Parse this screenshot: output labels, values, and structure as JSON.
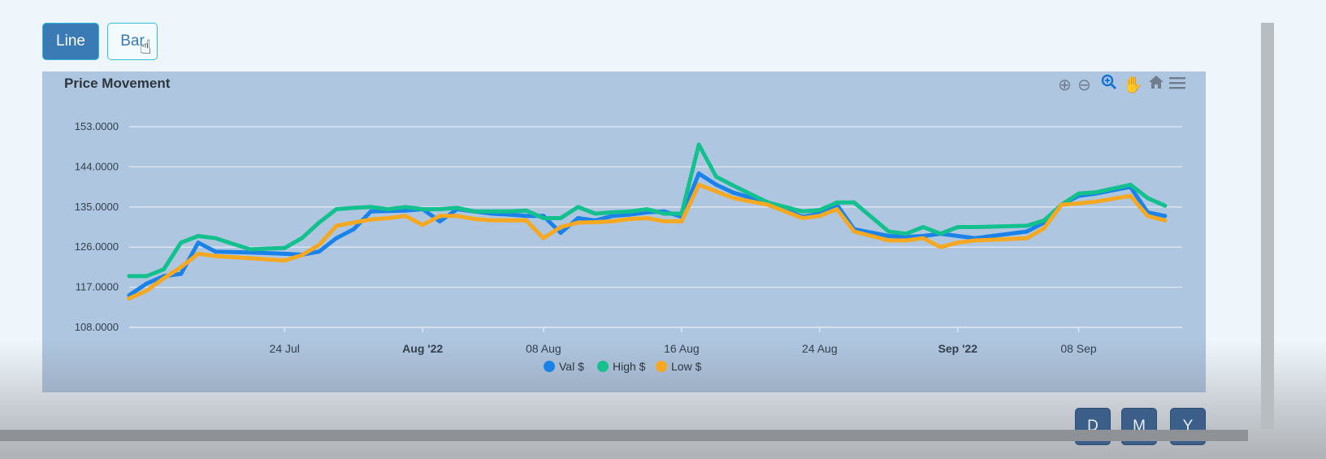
{
  "toolbar": {
    "line_label": "Line",
    "bar_label": "Bar"
  },
  "periods": {
    "d": "D",
    "m": "M",
    "y": "Y"
  },
  "chart_icons": [
    "zoom-in-icon",
    "zoom-out-icon",
    "search-icon",
    "pan-hand-icon",
    "home-icon",
    "menu-icon"
  ],
  "colors": {
    "val": "#1a82e8",
    "high": "#14c08e",
    "low": "#f5a822",
    "panel": "#afc6e0",
    "button_active": "#3a7ab5"
  },
  "chart_data": {
    "type": "line",
    "title": "Price Movement",
    "xlabel": "",
    "ylabel": "",
    "x_range": [
      "2022-07-15",
      "2022-09-14"
    ],
    "ylim": [
      108,
      153
    ],
    "y_ticks": [
      "108.0000",
      "117.0000",
      "126.0000",
      "135.0000",
      "144.0000",
      "153.0000"
    ],
    "x_ticks": [
      {
        "date": "2022-07-24",
        "label": "24 Jul",
        "bold": false
      },
      {
        "date": "2022-08-01",
        "label": "Aug '22",
        "bold": true
      },
      {
        "date": "2022-08-08",
        "label": "08 Aug",
        "bold": false
      },
      {
        "date": "2022-08-16",
        "label": "16 Aug",
        "bold": false
      },
      {
        "date": "2022-08-24",
        "label": "24 Aug",
        "bold": false
      },
      {
        "date": "2022-09-01",
        "label": "Sep '22",
        "bold": true
      },
      {
        "date": "2022-09-08",
        "label": "08 Sep",
        "bold": false
      }
    ],
    "legend_position": "bottom",
    "grid": true,
    "series": [
      {
        "name": "Val $",
        "color": "#1a82e8",
        "points": [
          [
            "2022-07-15",
            115.2
          ],
          [
            "2022-07-16",
            117.8
          ],
          [
            "2022-07-17",
            119.5
          ],
          [
            "2022-07-18",
            120.0
          ],
          [
            "2022-07-19",
            127.0
          ],
          [
            "2022-07-20",
            125.0
          ],
          [
            "2022-07-22",
            124.8
          ],
          [
            "2022-07-24",
            124.5
          ],
          [
            "2022-07-25",
            124.3
          ],
          [
            "2022-07-26",
            125.0
          ],
          [
            "2022-07-27",
            128.0
          ],
          [
            "2022-07-28",
            130.0
          ],
          [
            "2022-07-29",
            134.0
          ],
          [
            "2022-07-30",
            134.1
          ],
          [
            "2022-07-31",
            134.2
          ],
          [
            "2022-08-01",
            134.5
          ],
          [
            "2022-08-02",
            131.8
          ],
          [
            "2022-08-03",
            134.5
          ],
          [
            "2022-08-04",
            134.0
          ],
          [
            "2022-08-05",
            133.5
          ],
          [
            "2022-08-06",
            133.3
          ],
          [
            "2022-08-07",
            133.0
          ],
          [
            "2022-08-08",
            133.0
          ],
          [
            "2022-08-09",
            129.2
          ],
          [
            "2022-08-10",
            132.5
          ],
          [
            "2022-08-11",
            132.0
          ],
          [
            "2022-08-12",
            133.0
          ],
          [
            "2022-08-13",
            133.3
          ],
          [
            "2022-08-14",
            133.8
          ],
          [
            "2022-08-15",
            134.0
          ],
          [
            "2022-08-16",
            132.8
          ],
          [
            "2022-08-17",
            142.5
          ],
          [
            "2022-08-18",
            140.0
          ],
          [
            "2022-08-19",
            138.2
          ],
          [
            "2022-08-21",
            136.0
          ],
          [
            "2022-08-23",
            132.8
          ],
          [
            "2022-08-24",
            133.5
          ],
          [
            "2022-08-25",
            135.5
          ],
          [
            "2022-08-26",
            130.0
          ],
          [
            "2022-08-28",
            128.5
          ],
          [
            "2022-08-29",
            128.3
          ],
          [
            "2022-08-30",
            128.5
          ],
          [
            "2022-08-31",
            129.0
          ],
          [
            "2022-09-01",
            128.5
          ],
          [
            "2022-09-02",
            128.0
          ],
          [
            "2022-09-05",
            129.5
          ],
          [
            "2022-09-06",
            131.5
          ],
          [
            "2022-09-07",
            135.5
          ],
          [
            "2022-09-08",
            137.5
          ],
          [
            "2022-09-09",
            138.0
          ],
          [
            "2022-09-11",
            139.5
          ],
          [
            "2022-09-12",
            133.8
          ],
          [
            "2022-09-13",
            133.0
          ]
        ]
      },
      {
        "name": "High $",
        "color": "#14c08e",
        "points": [
          [
            "2022-07-15",
            119.5
          ],
          [
            "2022-07-16",
            119.5
          ],
          [
            "2022-07-17",
            121.0
          ],
          [
            "2022-07-18",
            127.0
          ],
          [
            "2022-07-19",
            128.5
          ],
          [
            "2022-07-20",
            128.0
          ],
          [
            "2022-07-22",
            125.5
          ],
          [
            "2022-07-24",
            125.8
          ],
          [
            "2022-07-25",
            128.0
          ],
          [
            "2022-07-26",
            131.5
          ],
          [
            "2022-07-27",
            134.5
          ],
          [
            "2022-07-28",
            134.8
          ],
          [
            "2022-07-29",
            135.0
          ],
          [
            "2022-07-30",
            134.5
          ],
          [
            "2022-07-31",
            135.0
          ],
          [
            "2022-08-01",
            134.5
          ],
          [
            "2022-08-02",
            134.5
          ],
          [
            "2022-08-03",
            134.8
          ],
          [
            "2022-08-04",
            134.0
          ],
          [
            "2022-08-05",
            134.0
          ],
          [
            "2022-08-06",
            134.0
          ],
          [
            "2022-08-07",
            134.2
          ],
          [
            "2022-08-08",
            132.5
          ],
          [
            "2022-08-09",
            132.5
          ],
          [
            "2022-08-10",
            135.0
          ],
          [
            "2022-08-11",
            133.5
          ],
          [
            "2022-08-12",
            133.8
          ],
          [
            "2022-08-13",
            134.0
          ],
          [
            "2022-08-14",
            134.5
          ],
          [
            "2022-08-15",
            133.5
          ],
          [
            "2022-08-16",
            133.5
          ],
          [
            "2022-08-17",
            149.0
          ],
          [
            "2022-08-18",
            141.8
          ],
          [
            "2022-08-19",
            139.8
          ],
          [
            "2022-08-21",
            136.0
          ],
          [
            "2022-08-23",
            134.0
          ],
          [
            "2022-08-24",
            134.3
          ],
          [
            "2022-08-25",
            136.0
          ],
          [
            "2022-08-26",
            136.0
          ],
          [
            "2022-08-28",
            129.5
          ],
          [
            "2022-08-29",
            129.0
          ],
          [
            "2022-08-30",
            130.5
          ],
          [
            "2022-08-31",
            129.0
          ],
          [
            "2022-09-01",
            130.5
          ],
          [
            "2022-09-02",
            130.5
          ],
          [
            "2022-09-05",
            130.8
          ],
          [
            "2022-09-06",
            132.0
          ],
          [
            "2022-09-07",
            135.5
          ],
          [
            "2022-09-08",
            138.0
          ],
          [
            "2022-09-09",
            138.3
          ],
          [
            "2022-09-11",
            140.0
          ],
          [
            "2022-09-12",
            137.0
          ],
          [
            "2022-09-13",
            135.3
          ]
        ]
      },
      {
        "name": "Low $",
        "color": "#f5a822",
        "points": [
          [
            "2022-07-15",
            114.5
          ],
          [
            "2022-07-16",
            116.2
          ],
          [
            "2022-07-17",
            119.0
          ],
          [
            "2022-07-18",
            121.5
          ],
          [
            "2022-07-19",
            124.5
          ],
          [
            "2022-07-20",
            124.0
          ],
          [
            "2022-07-22",
            123.5
          ],
          [
            "2022-07-24",
            123.0
          ],
          [
            "2022-07-25",
            124.2
          ],
          [
            "2022-07-26",
            126.5
          ],
          [
            "2022-07-27",
            130.8
          ],
          [
            "2022-07-28",
            131.5
          ],
          [
            "2022-07-29",
            132.2
          ],
          [
            "2022-07-30",
            132.5
          ],
          [
            "2022-07-31",
            133.0
          ],
          [
            "2022-08-01",
            131.0
          ],
          [
            "2022-08-02",
            133.0
          ],
          [
            "2022-08-03",
            133.0
          ],
          [
            "2022-08-04",
            132.3
          ],
          [
            "2022-08-05",
            132.0
          ],
          [
            "2022-08-06",
            132.0
          ],
          [
            "2022-08-07",
            132.0
          ],
          [
            "2022-08-08",
            128.0
          ],
          [
            "2022-08-09",
            130.5
          ],
          [
            "2022-08-10",
            131.5
          ],
          [
            "2022-08-11",
            131.6
          ],
          [
            "2022-08-12",
            131.8
          ],
          [
            "2022-08-13",
            132.3
          ],
          [
            "2022-08-14",
            132.5
          ],
          [
            "2022-08-15",
            131.8
          ],
          [
            "2022-08-16",
            131.8
          ],
          [
            "2022-08-17",
            140.0
          ],
          [
            "2022-08-18",
            138.5
          ],
          [
            "2022-08-19",
            137.0
          ],
          [
            "2022-08-21",
            135.5
          ],
          [
            "2022-08-23",
            132.5
          ],
          [
            "2022-08-24",
            133.0
          ],
          [
            "2022-08-25",
            134.5
          ],
          [
            "2022-08-26",
            129.5
          ],
          [
            "2022-08-28",
            127.5
          ],
          [
            "2022-08-29",
            127.5
          ],
          [
            "2022-08-30",
            128.0
          ],
          [
            "2022-08-31",
            126.0
          ],
          [
            "2022-09-01",
            127.0
          ],
          [
            "2022-09-02",
            127.5
          ],
          [
            "2022-09-05",
            128.0
          ],
          [
            "2022-09-06",
            130.2
          ],
          [
            "2022-09-07",
            135.5
          ],
          [
            "2022-09-08",
            135.8
          ],
          [
            "2022-09-09",
            136.2
          ],
          [
            "2022-09-11",
            137.5
          ],
          [
            "2022-09-12",
            133.0
          ],
          [
            "2022-09-13",
            132.0
          ]
        ]
      }
    ]
  }
}
